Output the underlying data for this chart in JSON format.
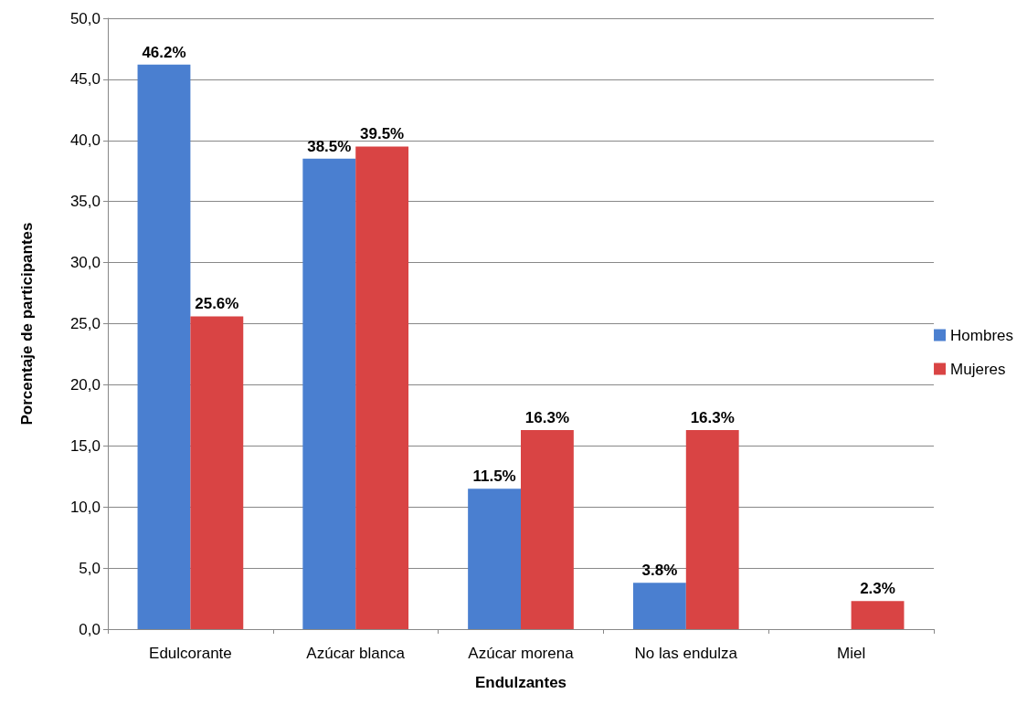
{
  "chart_data": {
    "type": "bar",
    "xlabel": "Endulzantes",
    "ylabel": "Porcentaje de participantes",
    "categories": [
      "Edulcorante",
      "Azúcar blanca",
      "Azúcar morena",
      "No las endulza",
      "Miel"
    ],
    "series": [
      {
        "name": "Hombres",
        "color": "#4a7fd0",
        "values": [
          46.2,
          38.5,
          11.5,
          3.8,
          null
        ],
        "value_labels": [
          "46.2%",
          "38.5%",
          "11.5%",
          "3.8%",
          null
        ]
      },
      {
        "name": "Mujeres",
        "color": "#d94444",
        "values": [
          25.6,
          39.5,
          16.3,
          16.3,
          2.3
        ],
        "value_labels": [
          "25.6%",
          "39.5%",
          "16.3%",
          "16.3%",
          "2.3%"
        ]
      }
    ],
    "ylim": [
      0,
      50
    ],
    "yticks": [
      {
        "value": 0,
        "label": "0,0"
      },
      {
        "value": 5,
        "label": "5,0"
      },
      {
        "value": 10,
        "label": "10,0"
      },
      {
        "value": 15,
        "label": "15,0"
      },
      {
        "value": 20,
        "label": "20,0"
      },
      {
        "value": 25,
        "label": "25,0"
      },
      {
        "value": 30,
        "label": "30,0"
      },
      {
        "value": 35,
        "label": "35,0"
      },
      {
        "value": 40,
        "label": "40,0"
      },
      {
        "value": 45,
        "label": "45,0"
      },
      {
        "value": 50,
        "label": "50,0"
      }
    ],
    "grid": "y",
    "legend": "right"
  }
}
